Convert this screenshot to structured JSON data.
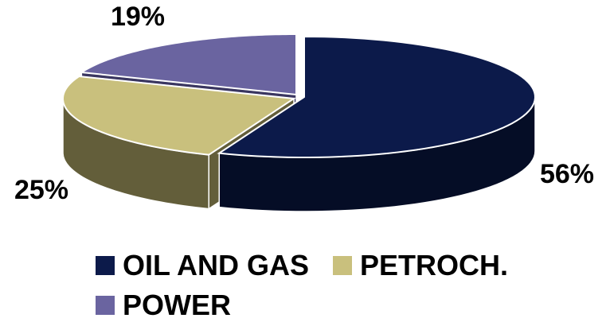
{
  "chart_data": {
    "type": "pie",
    "style": "3d-exploded",
    "categories": [
      "OIL AND GAS",
      "PETROCH.",
      "POWER"
    ],
    "values": [
      56,
      25,
      19
    ],
    "labels": [
      "56%",
      "25%",
      "19%"
    ],
    "colors": {
      "OIL AND GAS": "#0c1a4a",
      "PETROCH.": "#c9c07d",
      "POWER": "#6a64a0"
    },
    "side_colors": {
      "OIL AND GAS": "#050d26",
      "PETROCH.": "#635e3a",
      "POWER": "#3a3660"
    },
    "legend_position": "bottom",
    "title": ""
  }
}
